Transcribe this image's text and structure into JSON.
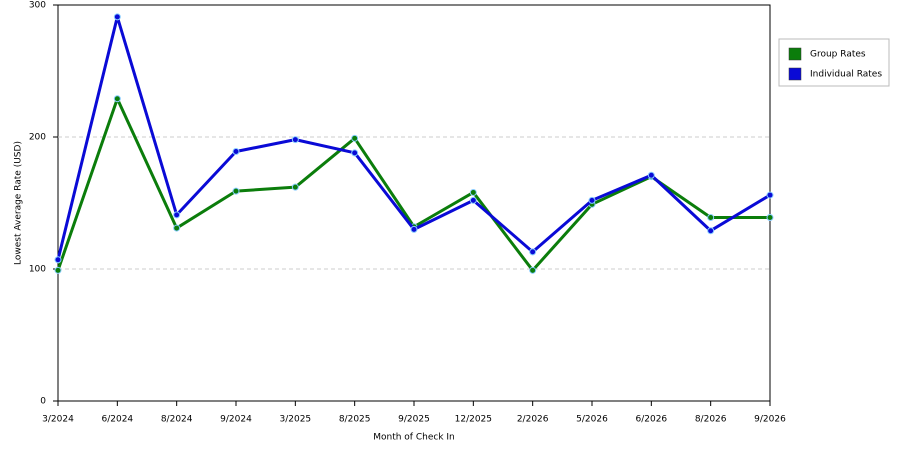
{
  "chart_data": {
    "type": "line",
    "x_label": "Month of Check In",
    "y_label": "Lowest Average Rate (USD)",
    "categories": [
      "3/2024",
      "6/2024",
      "8/2024",
      "9/2024",
      "3/2025",
      "8/2025",
      "9/2025",
      "12/2025",
      "2/2026",
      "5/2026",
      "6/2026",
      "8/2026",
      "9/2026"
    ],
    "series": [
      {
        "name": "Group Rates",
        "color": "#0b7d0b",
        "values": [
          99,
          229,
          131,
          159,
          162,
          199,
          132,
          158,
          99,
          149,
          170,
          139,
          139
        ]
      },
      {
        "name": "Individual Rates",
        "color": "#0a0ad6",
        "values": [
          107,
          291,
          141,
          189,
          198,
          188,
          130,
          152,
          113,
          152,
          171,
          129,
          156
        ]
      }
    ],
    "ylim": [
      0,
      300
    ],
    "yticks": [
      0,
      100,
      200,
      300
    ],
    "grid": true,
    "legend": "right"
  }
}
